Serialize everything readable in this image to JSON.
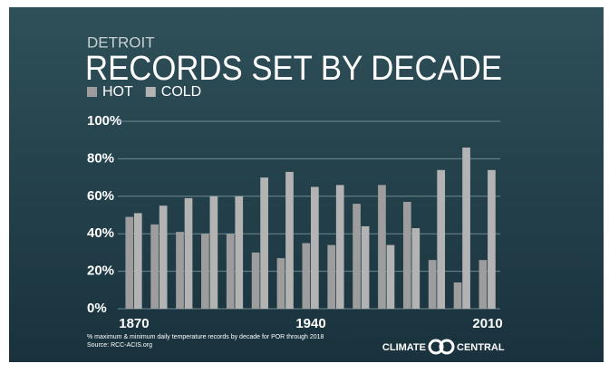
{
  "chart_data": {
    "type": "bar",
    "subtitle": "DETROIT",
    "title": "RECORDS SET BY DECADE",
    "categories": [
      "1870",
      null,
      null,
      null,
      null,
      null,
      null,
      "1940",
      null,
      null,
      null,
      null,
      null,
      null,
      "2010"
    ],
    "series": [
      {
        "name": "HOT",
        "color": "#9d9d9d",
        "values": [
          49,
          45,
          41,
          40,
          40,
          30,
          27,
          35,
          34,
          56,
          66,
          57,
          26,
          14,
          26
        ]
      },
      {
        "name": "COLD",
        "color": "#b3b3b3",
        "values": [
          51,
          55,
          59,
          60,
          60,
          70,
          73,
          65,
          66,
          44,
          34,
          43,
          74,
          86,
          74
        ]
      }
    ],
    "ylim": [
      0,
      100
    ],
    "yticks": [
      {
        "value": 0,
        "label": "0%"
      },
      {
        "value": 20,
        "label": "20%"
      },
      {
        "value": 40,
        "label": "40%"
      },
      {
        "value": 60,
        "label": "60%"
      },
      {
        "value": 80,
        "label": "80%"
      },
      {
        "value": 100,
        "label": "100%"
      }
    ],
    "grid": true,
    "footnote": "% maximum & minimum daily temperature records by decade for POR through 2018",
    "source": "Source: RCC-ACIS.org",
    "logo": [
      "CLIMATE",
      "CENTRAL"
    ]
  }
}
